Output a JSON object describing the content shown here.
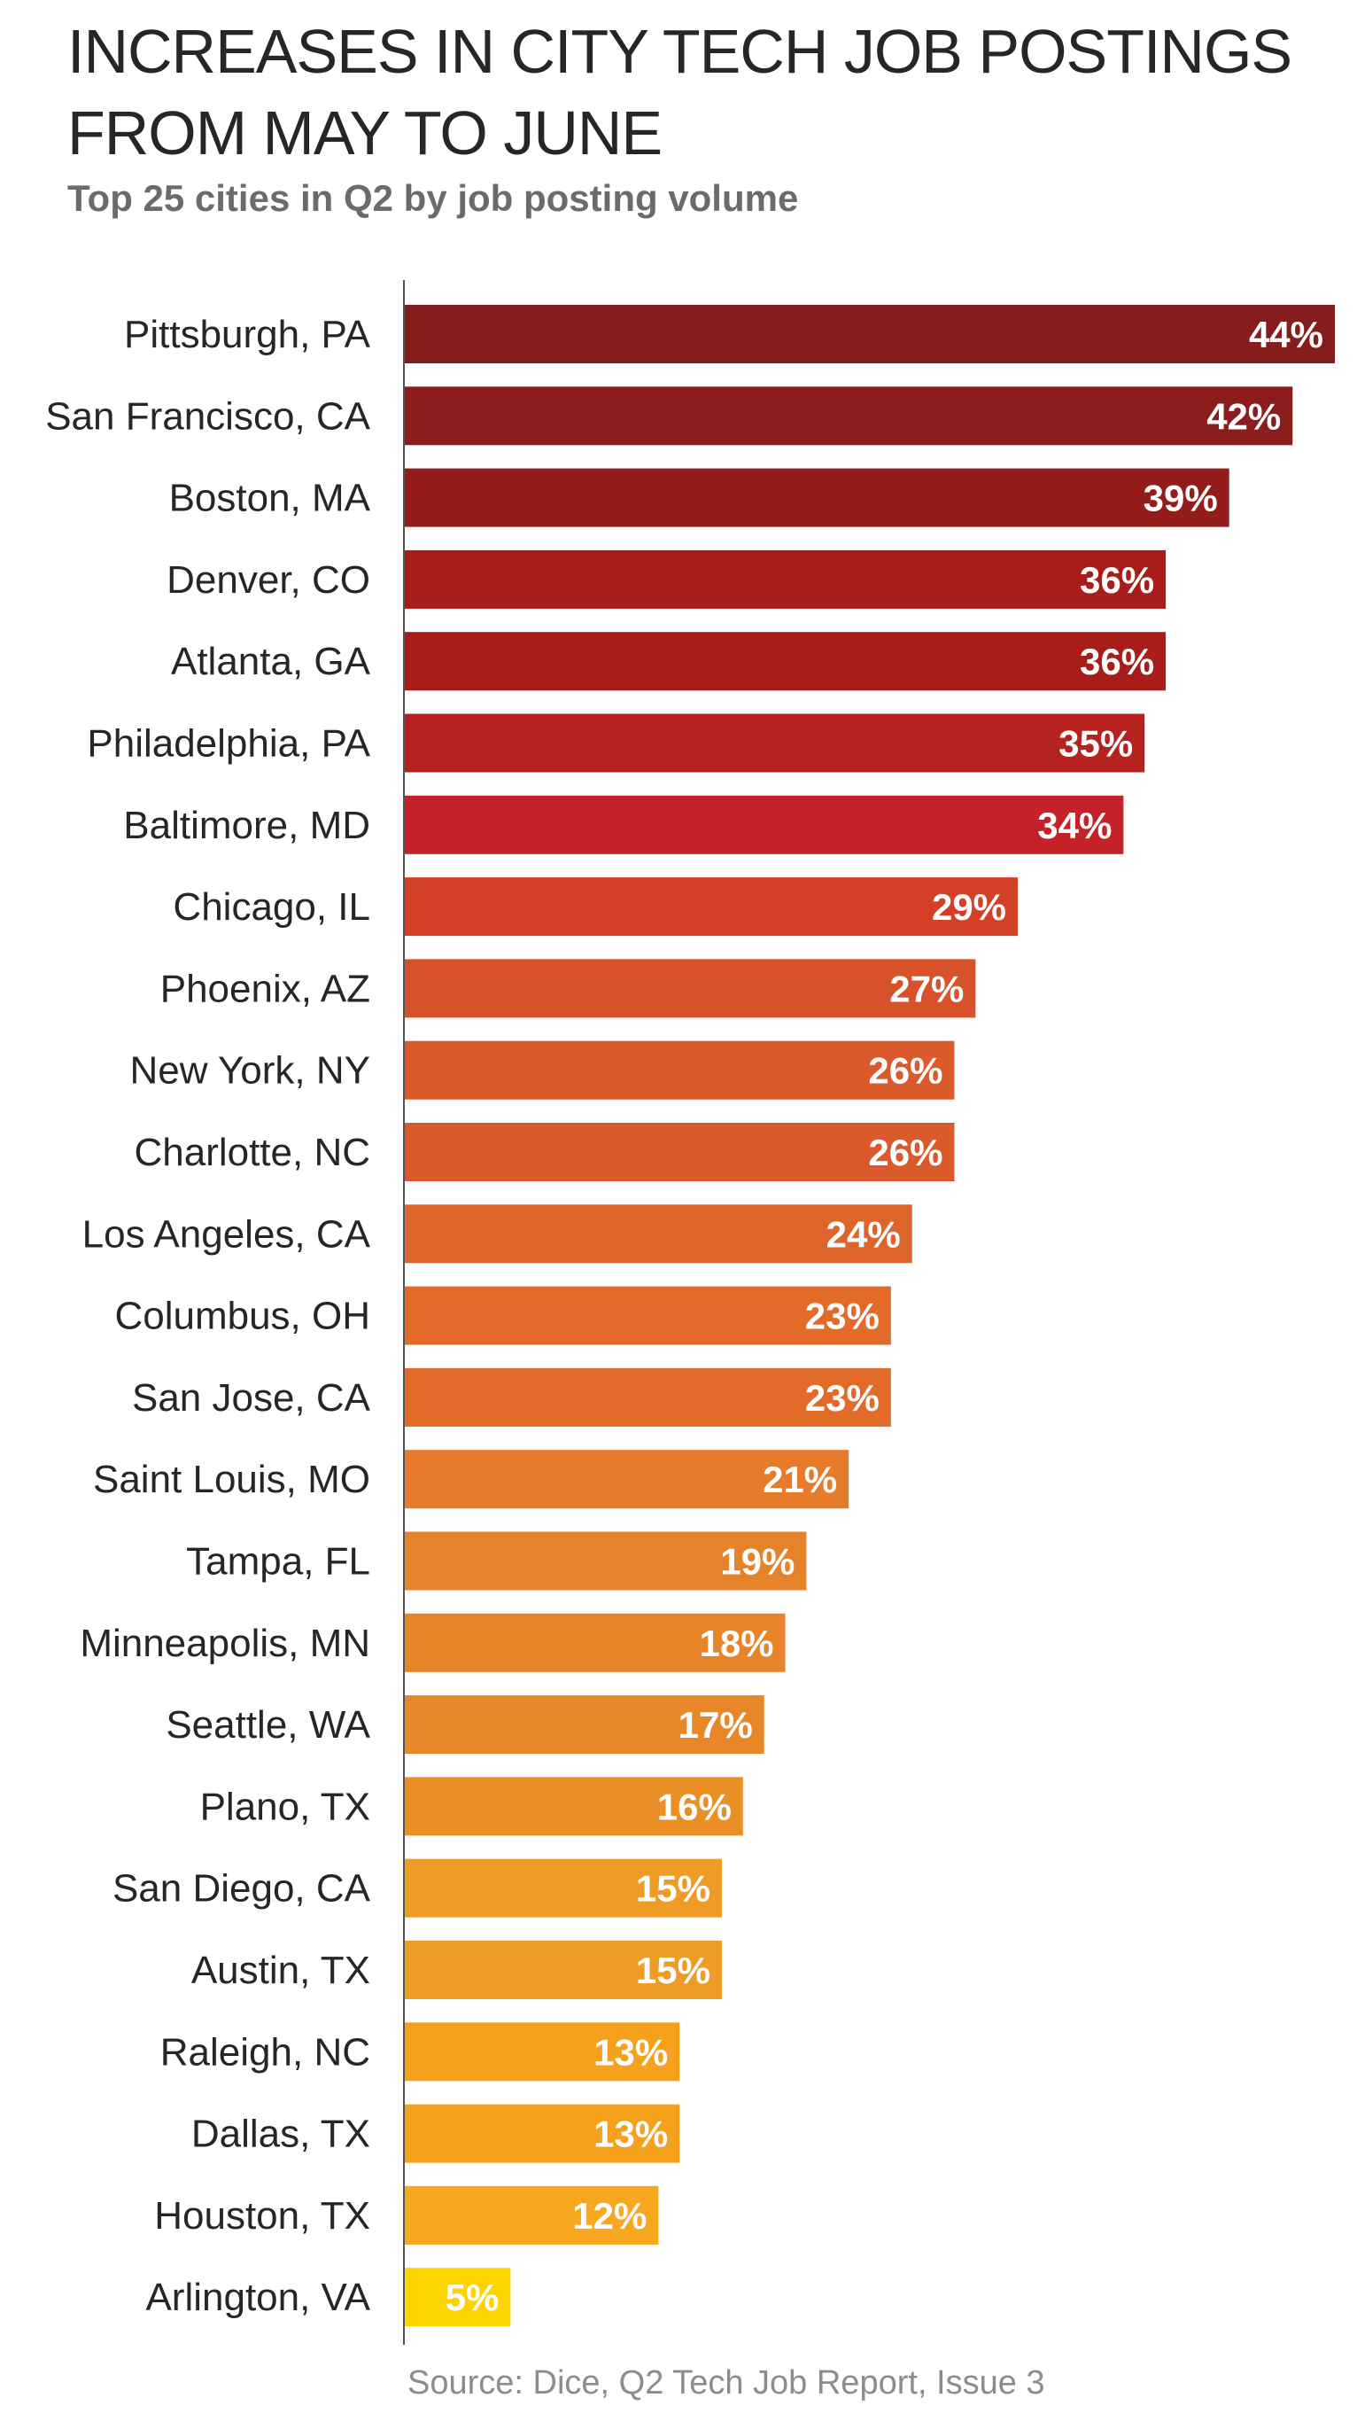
{
  "chart_data": {
    "type": "bar",
    "orientation": "horizontal",
    "title": "INCREASES IN CITY TECH JOB POSTINGS FROM MAY TO JUNE",
    "subtitle": "Top 25 cities in Q2 by job posting volume",
    "source": "Source: Dice, Q2 Tech Job Report, Issue 3",
    "xlabel": "",
    "ylabel": "",
    "xlim": [
      0,
      44
    ],
    "grid": false,
    "categories": [
      "Pittsburgh, PA",
      "San Francisco, CA",
      "Boston, MA",
      "Denver, CO",
      "Atlanta, GA",
      "Philadelphia, PA",
      "Baltimore, MD",
      "Chicago, IL",
      "Phoenix, AZ",
      "New York, NY",
      "Charlotte, NC",
      "Los Angeles, CA",
      "Columbus, OH",
      "San Jose, CA",
      "Saint Louis, MO",
      "Tampa, FL",
      "Minneapolis, MN",
      "Seattle, WA",
      "Plano, TX",
      "San Diego, CA",
      "Austin, TX",
      "Raleigh, NC",
      "Dallas, TX",
      "Houston, TX",
      "Arlington, VA"
    ],
    "values": [
      44,
      42,
      39,
      36,
      36,
      35,
      34,
      29,
      27,
      26,
      26,
      24,
      23,
      23,
      21,
      19,
      18,
      17,
      16,
      15,
      15,
      13,
      13,
      12,
      5
    ],
    "value_labels": [
      "44%",
      "42%",
      "39%",
      "36%",
      "36%",
      "35%",
      "34%",
      "29%",
      "27%",
      "26%",
      "26%",
      "24%",
      "23%",
      "23%",
      "21%",
      "19%",
      "18%",
      "17%",
      "16%",
      "15%",
      "15%",
      "13%",
      "13%",
      "12%",
      "5%"
    ],
    "colors": [
      "#841d1c",
      "#8b1d1c",
      "#941d1b",
      "#a81c19",
      "#a81c19",
      "#b6221f",
      "#c42228",
      "#d34026",
      "#d7522a",
      "#da5a2b",
      "#da5a2b",
      "#de6529",
      "#e36b2a",
      "#e36b2a",
      "#e67b2b",
      "#e6822a",
      "#e78328",
      "#e78728",
      "#e98f26",
      "#ee9c25",
      "#ee9c25",
      "#f5a11c",
      "#f5a11c",
      "#f7a81e",
      "#fdd300"
    ]
  }
}
